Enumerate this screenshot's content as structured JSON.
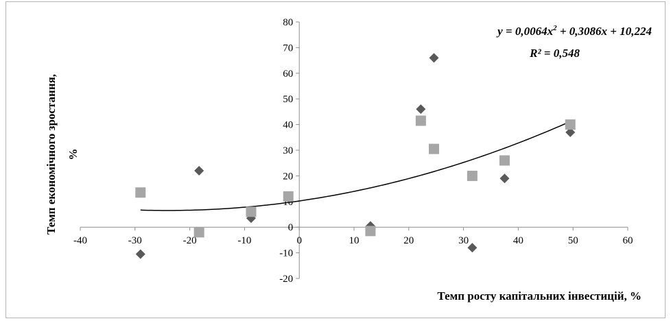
{
  "chart_data": {
    "type": "scatter",
    "title": "",
    "xlabel": "Темп росту капітальних інвестицій, %",
    "ylabel": "Темп економічного зростання, %",
    "xlim": [
      -40,
      60
    ],
    "ylim": [
      -20,
      80
    ],
    "x_ticks": [
      "-40",
      "-30",
      "-20",
      "-10",
      "0",
      "10",
      "20",
      "30",
      "40",
      "50",
      "60"
    ],
    "y_ticks": [
      "-20",
      "-10",
      "0",
      "10",
      "20",
      "30",
      "40",
      "50",
      "60",
      "70",
      "80"
    ],
    "grid": false,
    "legend": "none",
    "series": [
      {
        "marker": "diamond",
        "color": "#595959",
        "points": [
          {
            "x": -29,
            "y": -10.5
          },
          {
            "x": -18.3,
            "y": 22
          },
          {
            "x": -8.8,
            "y": 3.5
          },
          {
            "x": -2,
            "y": 11.5
          },
          {
            "x": 13,
            "y": 0.5
          },
          {
            "x": 22.2,
            "y": 46
          },
          {
            "x": 24.6,
            "y": 66
          },
          {
            "x": 31.6,
            "y": -8
          },
          {
            "x": 37.5,
            "y": 19
          },
          {
            "x": 49.5,
            "y": 37
          }
        ]
      },
      {
        "marker": "square",
        "color": "#a6a6a6",
        "points": [
          {
            "x": -29,
            "y": 13.5
          },
          {
            "x": -18.3,
            "y": -2
          },
          {
            "x": -8.8,
            "y": 6
          },
          {
            "x": -2,
            "y": 12
          },
          {
            "x": 13,
            "y": -1.5
          },
          {
            "x": 22.2,
            "y": 41.5
          },
          {
            "x": 24.6,
            "y": 30.5
          },
          {
            "x": 31.6,
            "y": 20
          },
          {
            "x": 37.5,
            "y": 26
          },
          {
            "x": 49.5,
            "y": 40
          }
        ]
      }
    ],
    "trendline": {
      "type": "polynomial",
      "coefficients": [
        0.0064,
        0.3086,
        10.224
      ],
      "x_range": [
        -29,
        49.5
      ],
      "color": "#000000"
    },
    "annotations": {
      "equation_prefix": "y = 0,0064x",
      "equation_sup": "2",
      "equation_suffix": " + 0,3086x + 10,224",
      "r_squared": "R² = 0,548"
    }
  }
}
